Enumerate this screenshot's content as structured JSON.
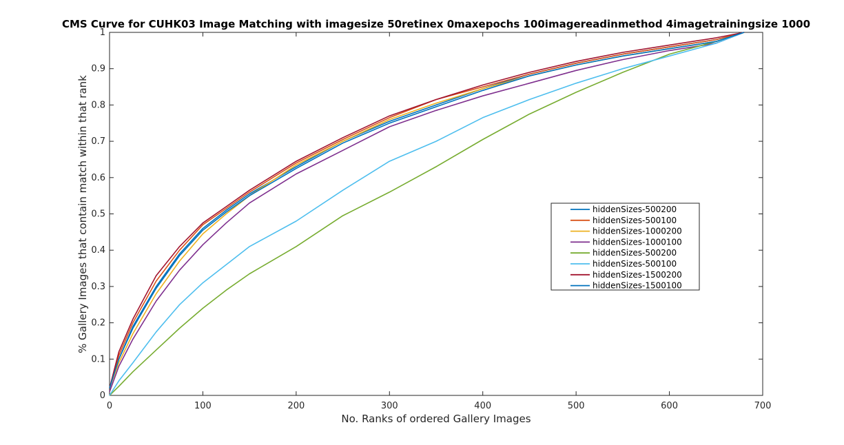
{
  "chart_data": {
    "type": "line",
    "title": "CMS Curve for CUHK03 Image Matching with imagesize 50retinex 0maxepochs 100imagereadinmethod 4imagetrainingsize 1000",
    "xlabel": "No. Ranks of ordered Gallery Images",
    "ylabel": "% Gallery Images that contain match within that rank",
    "xlim": [
      0,
      700
    ],
    "ylim": [
      0,
      1
    ],
    "xticks": [
      "0",
      "100",
      "200",
      "300",
      "400",
      "500",
      "600",
      "700"
    ],
    "yticks": [
      "0",
      "0.1",
      "0.2",
      "0.3",
      "0.4",
      "0.5",
      "0.6",
      "0.7",
      "0.8",
      "0.9",
      "1"
    ],
    "grid": false,
    "legend_position": "right",
    "series": [
      {
        "name": "hiddenSizes-500200",
        "color": "#0072BD",
        "x": [
          0,
          10,
          25,
          50,
          75,
          100,
          125,
          150,
          200,
          250,
          300,
          350,
          400,
          450,
          500,
          550,
          600,
          650,
          680
        ],
        "y": [
          0.02,
          0.1,
          0.19,
          0.3,
          0.39,
          0.46,
          0.51,
          0.555,
          0.63,
          0.7,
          0.755,
          0.8,
          0.845,
          0.885,
          0.915,
          0.94,
          0.96,
          0.98,
          1.0
        ]
      },
      {
        "name": "hiddenSizes-500100",
        "color": "#D95319",
        "x": [
          0,
          10,
          25,
          50,
          75,
          100,
          125,
          150,
          200,
          250,
          300,
          350,
          400,
          450,
          500,
          550,
          600,
          650,
          680
        ],
        "y": [
          0.02,
          0.11,
          0.2,
          0.315,
          0.4,
          0.47,
          0.515,
          0.56,
          0.64,
          0.705,
          0.765,
          0.815,
          0.85,
          0.885,
          0.915,
          0.94,
          0.96,
          0.98,
          1.0
        ]
      },
      {
        "name": "hiddenSizes-1000200",
        "color": "#EDB120",
        "x": [
          0,
          10,
          25,
          50,
          75,
          100,
          125,
          150,
          200,
          250,
          300,
          350,
          400,
          450,
          500,
          550,
          600,
          650,
          680
        ],
        "y": [
          0.02,
          0.09,
          0.17,
          0.28,
          0.37,
          0.445,
          0.5,
          0.55,
          0.635,
          0.7,
          0.76,
          0.805,
          0.845,
          0.88,
          0.91,
          0.935,
          0.955,
          0.975,
          1.0
        ]
      },
      {
        "name": "hiddenSizes-1000100",
        "color": "#7E2F8E",
        "x": [
          0,
          10,
          25,
          50,
          75,
          100,
          125,
          150,
          200,
          250,
          300,
          350,
          400,
          450,
          500,
          550,
          600,
          650,
          680
        ],
        "y": [
          0.01,
          0.08,
          0.155,
          0.26,
          0.345,
          0.415,
          0.475,
          0.53,
          0.61,
          0.675,
          0.74,
          0.785,
          0.825,
          0.86,
          0.895,
          0.925,
          0.95,
          0.97,
          1.0
        ]
      },
      {
        "name": "hiddenSizes-500200",
        "color": "#77AC30",
        "x": [
          0,
          10,
          25,
          50,
          75,
          100,
          125,
          150,
          200,
          250,
          300,
          350,
          400,
          450,
          500,
          550,
          600,
          650,
          680
        ],
        "y": [
          0.0,
          0.025,
          0.065,
          0.125,
          0.185,
          0.24,
          0.29,
          0.335,
          0.41,
          0.495,
          0.56,
          0.63,
          0.705,
          0.775,
          0.835,
          0.89,
          0.94,
          0.975,
          1.0
        ]
      },
      {
        "name": "hiddenSizes-500100",
        "color": "#4DBEEE",
        "x": [
          0,
          10,
          25,
          50,
          75,
          100,
          125,
          150,
          200,
          250,
          300,
          350,
          400,
          450,
          500,
          550,
          600,
          650,
          680
        ],
        "y": [
          0.0,
          0.04,
          0.09,
          0.175,
          0.25,
          0.31,
          0.36,
          0.41,
          0.48,
          0.565,
          0.645,
          0.7,
          0.765,
          0.815,
          0.86,
          0.9,
          0.935,
          0.97,
          1.0
        ]
      },
      {
        "name": "hiddenSizes-1500200",
        "color": "#A2142F",
        "x": [
          0,
          10,
          25,
          50,
          75,
          100,
          125,
          150,
          200,
          250,
          300,
          350,
          400,
          450,
          500,
          550,
          600,
          650,
          680
        ],
        "y": [
          0.02,
          0.12,
          0.21,
          0.33,
          0.41,
          0.475,
          0.52,
          0.565,
          0.645,
          0.71,
          0.77,
          0.815,
          0.855,
          0.89,
          0.92,
          0.945,
          0.965,
          0.985,
          1.0
        ]
      },
      {
        "name": "hiddenSizes-1500100",
        "color": "#0072BD",
        "x": [
          0,
          10,
          25,
          50,
          75,
          100,
          125,
          150,
          200,
          250,
          300,
          350,
          400,
          450,
          500,
          550,
          600,
          650,
          680
        ],
        "y": [
          0.02,
          0.1,
          0.185,
          0.295,
          0.385,
          0.455,
          0.505,
          0.55,
          0.625,
          0.695,
          0.75,
          0.795,
          0.84,
          0.88,
          0.91,
          0.935,
          0.955,
          0.975,
          1.0
        ]
      }
    ]
  }
}
